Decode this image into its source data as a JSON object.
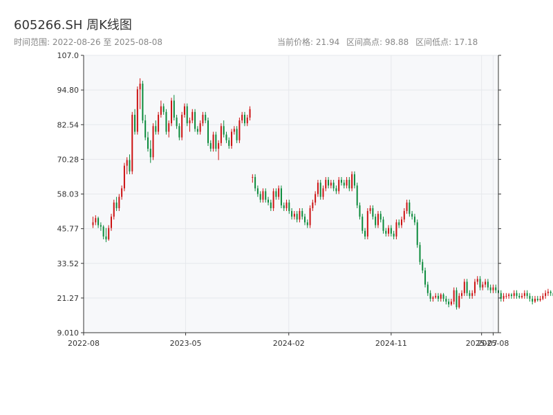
{
  "header": {
    "title": "605266.SH 周K线图",
    "range_label": "时间范围: 2022-08-26 至 2025-08-08",
    "stats": [
      "当前价格: 21.94",
      "区间高点: 98.88",
      "区间低点: 17.18"
    ]
  },
  "colors": {
    "up": "#cc1111",
    "down": "#0a8a3a",
    "plot_bg": "#f7f8fa",
    "grid": "#e6e8ec",
    "axis": "#333333"
  },
  "chart_data": {
    "type": "candlestick",
    "title": "605266.SH 周K线图",
    "ylim": [
      9.01,
      107.0
    ],
    "y_ticks": [
      "9.010",
      "21.27",
      "33.52",
      "45.77",
      "58.03",
      "70.28",
      "82.54",
      "94.80",
      "107.0"
    ],
    "x_ticks": [
      "2022-08",
      "2023-05",
      "2024-02",
      "2024-11",
      "2025-07",
      "2025-08"
    ],
    "grid": true,
    "start": "2022-08-26",
    "end": "2025-08-08",
    "interval": "weekly",
    "current_price": 21.94,
    "high": 98.88,
    "low": 17.18,
    "close": [
      48,
      49.5,
      47,
      46.5,
      43,
      42,
      46,
      50,
      55,
      53,
      57,
      60,
      68,
      70,
      66,
      86,
      80,
      95,
      97,
      84,
      78,
      74,
      71,
      82,
      80,
      86,
      89,
      87,
      80,
      83,
      91,
      85,
      82,
      78,
      86,
      89,
      83,
      84,
      87,
      81,
      80,
      83,
      86,
      84,
      76,
      74,
      79,
      74,
      76,
      82,
      79,
      77,
      75,
      80,
      81,
      77,
      84,
      86,
      83,
      85,
      88,
      64,
      60,
      58,
      56,
      59,
      56,
      55,
      53,
      59,
      57,
      60,
      54,
      53,
      55,
      52,
      50,
      51,
      49,
      52,
      50,
      48,
      47,
      53,
      55,
      58,
      62,
      57,
      60,
      63,
      61,
      62,
      60,
      59,
      63,
      62,
      61,
      63,
      60,
      65,
      61,
      54,
      50,
      45,
      43,
      52,
      53,
      50,
      47,
      51,
      49,
      45,
      44,
      46,
      44,
      43,
      48,
      47,
      49,
      52,
      55,
      51,
      50,
      48,
      40,
      34,
      31,
      26,
      23,
      21,
      21.5,
      22,
      21,
      22.5,
      21,
      20,
      19,
      20,
      24,
      18,
      22,
      23,
      27,
      23,
      22,
      23,
      27,
      28,
      25,
      26,
      27,
      25,
      24,
      25,
      24,
      23,
      21,
      22,
      22,
      22.5,
      22,
      23,
      22,
      21.5,
      22,
      23,
      22,
      21,
      20,
      21,
      20.5,
      21,
      22,
      23,
      23.5,
      23,
      22,
      21,
      20.5,
      21,
      21.5,
      21.5,
      22,
      22.5,
      22,
      21.94
    ],
    "ohlc": [
      [
        47,
        50,
        46,
        48
      ],
      [
        48,
        50.5,
        47,
        49.5
      ],
      [
        49.5,
        50,
        46,
        47
      ],
      [
        47,
        48,
        45,
        46.5
      ],
      [
        46.5,
        47,
        42,
        43
      ],
      [
        43,
        46,
        41,
        42
      ],
      [
        42,
        47,
        41.5,
        46
      ],
      [
        46,
        51,
        45,
        50
      ],
      [
        50,
        56,
        49,
        55
      ],
      [
        55,
        57,
        52,
        53
      ],
      [
        53,
        58,
        52,
        57
      ],
      [
        57,
        61,
        56,
        60
      ],
      [
        60,
        69,
        59,
        68
      ],
      [
        68,
        71,
        65,
        70
      ],
      [
        70,
        72,
        65,
        66
      ],
      [
        66,
        87,
        65,
        86
      ],
      [
        86,
        88,
        79,
        80
      ],
      [
        80,
        96,
        79,
        95
      ],
      [
        95,
        98.88,
        88,
        97
      ],
      [
        97,
        98,
        83,
        84
      ],
      [
        84,
        86,
        77,
        78
      ],
      [
        78,
        80,
        73,
        74
      ],
      [
        74,
        77,
        69,
        71
      ],
      [
        71,
        83,
        70,
        82
      ],
      [
        82,
        84,
        79,
        80
      ],
      [
        80,
        87,
        79,
        86
      ],
      [
        86,
        91,
        85,
        89
      ],
      [
        89,
        90,
        86,
        87
      ],
      [
        87,
        88,
        79,
        80
      ],
      [
        80,
        84,
        78,
        83
      ],
      [
        83,
        92,
        82,
        91
      ],
      [
        91,
        93,
        84,
        85
      ],
      [
        85,
        86,
        81,
        82
      ],
      [
        82,
        83,
        77,
        78
      ],
      [
        78,
        87,
        77,
        86
      ],
      [
        86,
        90,
        85,
        89
      ],
      [
        89,
        90,
        82,
        83
      ],
      [
        83,
        85,
        80,
        84
      ],
      [
        84,
        88,
        83,
        87
      ],
      [
        87,
        88,
        80,
        81
      ],
      [
        81,
        82,
        79,
        80
      ],
      [
        80,
        84,
        79,
        83
      ],
      [
        83,
        87,
        82,
        86
      ],
      [
        86,
        87,
        83,
        84
      ],
      [
        84,
        85,
        75,
        76
      ],
      [
        76,
        77,
        73,
        74
      ],
      [
        74,
        80,
        73,
        79
      ],
      [
        79,
        80,
        73,
        74
      ],
      [
        74,
        77,
        70,
        76
      ],
      [
        76,
        83,
        75,
        82
      ],
      [
        82,
        84,
        78,
        79
      ],
      [
        79,
        80,
        76,
        77
      ],
      [
        77,
        78,
        74,
        75
      ],
      [
        75,
        81,
        74,
        80
      ],
      [
        80,
        82,
        79,
        81
      ],
      [
        81,
        82,
        76,
        77
      ],
      [
        77,
        85,
        76,
        84
      ],
      [
        84,
        87,
        83,
        86
      ],
      [
        86,
        87,
        82,
        83
      ],
      [
        83,
        86,
        82,
        85
      ],
      [
        85,
        89,
        84,
        88
      ],
      [
        64,
        65,
        62,
        64
      ],
      [
        64,
        65,
        59,
        60
      ],
      [
        60,
        61,
        57,
        58
      ],
      [
        58,
        59,
        55,
        56
      ],
      [
        56,
        60,
        55,
        59
      ],
      [
        59,
        60,
        55,
        56
      ],
      [
        56,
        57,
        54,
        55
      ],
      [
        55,
        56,
        52,
        53
      ],
      [
        53,
        60,
        52,
        59
      ],
      [
        59,
        60,
        56,
        57
      ],
      [
        57,
        61,
        56,
        60
      ],
      [
        60,
        61,
        53,
        54
      ],
      [
        54,
        55,
        52,
        53
      ],
      [
        53,
        56,
        52,
        55
      ],
      [
        55,
        56,
        51,
        52
      ],
      [
        52,
        53,
        49,
        50
      ],
      [
        50,
        52,
        49,
        51
      ],
      [
        51,
        52,
        48,
        49
      ],
      [
        49,
        53,
        48,
        52
      ],
      [
        52,
        53,
        49,
        50
      ],
      [
        50,
        51,
        47,
        48
      ],
      [
        48,
        49,
        46,
        47
      ],
      [
        47,
        54,
        46,
        53
      ],
      [
        53,
        56,
        52,
        55
      ],
      [
        55,
        59,
        54,
        58
      ],
      [
        58,
        63,
        57,
        62
      ],
      [
        62,
        63,
        56,
        57
      ],
      [
        57,
        61,
        56,
        60
      ],
      [
        60,
        64,
        59,
        63
      ],
      [
        63,
        64,
        60,
        61
      ],
      [
        61,
        63,
        60,
        62
      ],
      [
        62,
        63,
        59,
        60
      ],
      [
        60,
        61,
        58,
        59
      ],
      [
        59,
        64,
        58,
        63
      ],
      [
        63,
        64,
        61,
        62
      ],
      [
        62,
        63,
        60,
        61
      ],
      [
        61,
        64,
        60,
        63
      ],
      [
        63,
        64,
        59,
        60
      ],
      [
        60,
        66,
        59,
        65
      ],
      [
        65,
        66,
        60,
        61
      ],
      [
        61,
        62,
        53,
        54
      ],
      [
        54,
        55,
        49,
        50
      ],
      [
        50,
        51,
        44,
        45
      ],
      [
        45,
        46,
        42,
        43
      ],
      [
        43,
        53,
        42,
        52
      ],
      [
        52,
        54,
        51,
        53
      ],
      [
        53,
        54,
        49,
        50
      ],
      [
        50,
        51,
        46,
        47
      ],
      [
        47,
        52,
        46,
        51
      ],
      [
        51,
        52,
        48,
        49
      ],
      [
        49,
        50,
        44,
        45
      ],
      [
        45,
        46,
        43,
        44
      ],
      [
        44,
        47,
        43,
        46
      ],
      [
        46,
        47,
        43,
        44
      ],
      [
        44,
        45,
        42,
        43
      ],
      [
        43,
        49,
        42,
        48
      ],
      [
        48,
        49,
        46,
        47
      ],
      [
        47,
        50,
        46,
        49
      ],
      [
        49,
        53,
        48,
        52
      ],
      [
        52,
        56,
        51,
        55
      ],
      [
        55,
        56,
        50,
        51
      ],
      [
        51,
        52,
        49,
        50
      ],
      [
        50,
        51,
        47,
        48
      ],
      [
        48,
        49,
        39,
        40
      ],
      [
        40,
        41,
        33,
        34
      ],
      [
        34,
        35,
        30,
        31
      ],
      [
        31,
        32,
        25,
        26
      ],
      [
        26,
        27,
        22,
        23
      ],
      [
        23,
        24,
        20,
        21
      ],
      [
        21,
        22,
        20,
        21.5
      ],
      [
        21.5,
        23,
        21,
        22
      ],
      [
        22,
        23,
        20,
        21
      ],
      [
        21,
        23,
        20,
        22.5
      ],
      [
        22.5,
        23,
        20,
        21
      ],
      [
        21,
        22,
        19,
        20
      ],
      [
        20,
        21,
        18,
        19
      ],
      [
        19,
        21,
        18.5,
        20
      ],
      [
        20,
        25,
        19,
        24
      ],
      [
        24,
        25,
        17.18,
        18
      ],
      [
        18,
        23,
        17.5,
        22
      ],
      [
        22,
        24,
        21,
        23
      ],
      [
        23,
        28,
        22,
        27
      ],
      [
        27,
        28,
        22,
        23
      ],
      [
        23,
        24,
        21,
        22
      ],
      [
        22,
        24,
        21,
        23
      ],
      [
        23,
        28,
        22,
        27
      ],
      [
        27,
        29,
        26,
        28
      ],
      [
        28,
        29,
        24,
        25
      ],
      [
        25,
        27,
        24,
        26
      ],
      [
        26,
        28,
        25,
        27
      ],
      [
        27,
        28,
        24,
        25
      ],
      [
        25,
        26,
        23,
        24
      ],
      [
        24,
        26,
        23,
        25
      ],
      [
        25,
        26,
        23,
        24
      ],
      [
        24,
        25,
        22,
        23
      ],
      [
        23,
        24,
        20,
        21
      ],
      [
        21,
        23,
        20,
        22
      ],
      [
        22,
        23,
        21,
        22
      ],
      [
        22,
        23,
        21,
        22.5
      ],
      [
        22.5,
        23,
        21,
        22
      ],
      [
        22,
        24,
        21,
        23
      ],
      [
        23,
        24,
        21,
        22
      ],
      [
        22,
        23,
        21,
        21.5
      ],
      [
        21.5,
        23,
        21,
        22
      ],
      [
        22,
        24,
        21,
        23
      ],
      [
        23,
        24,
        21,
        22
      ],
      [
        22,
        23,
        20,
        21
      ],
      [
        21,
        22,
        19,
        20
      ],
      [
        20,
        22,
        19.5,
        21
      ],
      [
        21,
        22,
        20,
        20.5
      ],
      [
        20.5,
        22,
        20,
        21
      ],
      [
        21,
        23,
        20.5,
        22
      ],
      [
        22,
        24,
        21,
        23
      ],
      [
        23,
        24.5,
        22,
        23.5
      ],
      [
        23.5,
        24,
        22,
        23
      ],
      [
        23,
        24,
        21,
        22
      ],
      [
        22,
        23,
        20,
        21
      ],
      [
        21,
        22,
        20,
        20.5
      ],
      [
        20.5,
        22,
        20,
        21
      ],
      [
        21,
        22,
        20.5,
        21.5
      ],
      [
        21.5,
        22,
        21,
        21.5
      ],
      [
        21.5,
        23,
        21,
        22
      ],
      [
        22,
        23,
        21.5,
        22.5
      ],
      [
        22.5,
        23,
        21.5,
        22
      ],
      [
        22,
        22.5,
        21.5,
        21.94
      ]
    ]
  }
}
